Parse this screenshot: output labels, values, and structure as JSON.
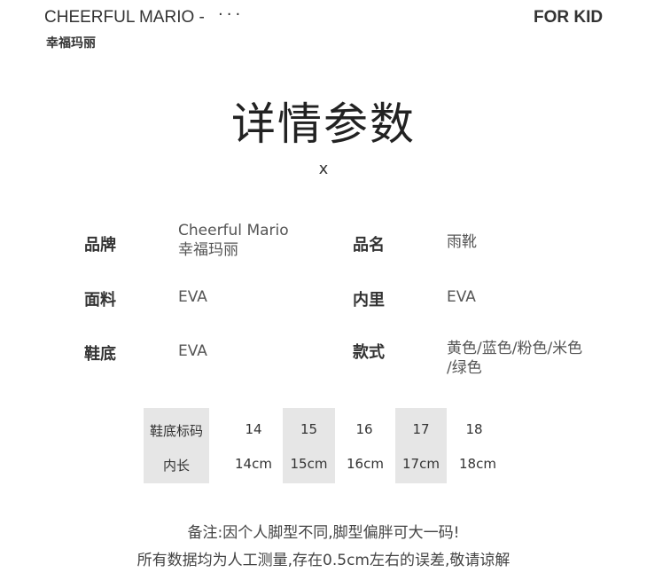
{
  "header": {
    "brand": "CHEERFUL MARIO -",
    "more": "···",
    "brand_cn": "幸福玛丽",
    "right": "FOR KID"
  },
  "title": "详情参数",
  "close": "x",
  "specs": [
    {
      "label": "品牌",
      "value": "Cheerful Mario\n幸福玛丽"
    },
    {
      "label": "品名",
      "value": "雨靴"
    },
    {
      "label": "面料",
      "value": "EVA"
    },
    {
      "label": "内里",
      "value": "EVA"
    },
    {
      "label": "鞋底",
      "value": "EVA"
    },
    {
      "label": "款式",
      "value": "黄色/蓝色/粉色/米色\n/绿色"
    }
  ],
  "size_table": {
    "row_headers": [
      "鞋底标码",
      "内长"
    ],
    "sizes": [
      "14",
      "15",
      "16",
      "17",
      "18"
    ],
    "lengths": [
      "14cm",
      "15cm",
      "16cm",
      "17cm",
      "18cm"
    ]
  },
  "notes": [
    "备注:因个人脚型不同,脚型偏胖可大一码!",
    "所有数据均为人工测量,存在0.5cm左右的误差,敬请谅解"
  ]
}
